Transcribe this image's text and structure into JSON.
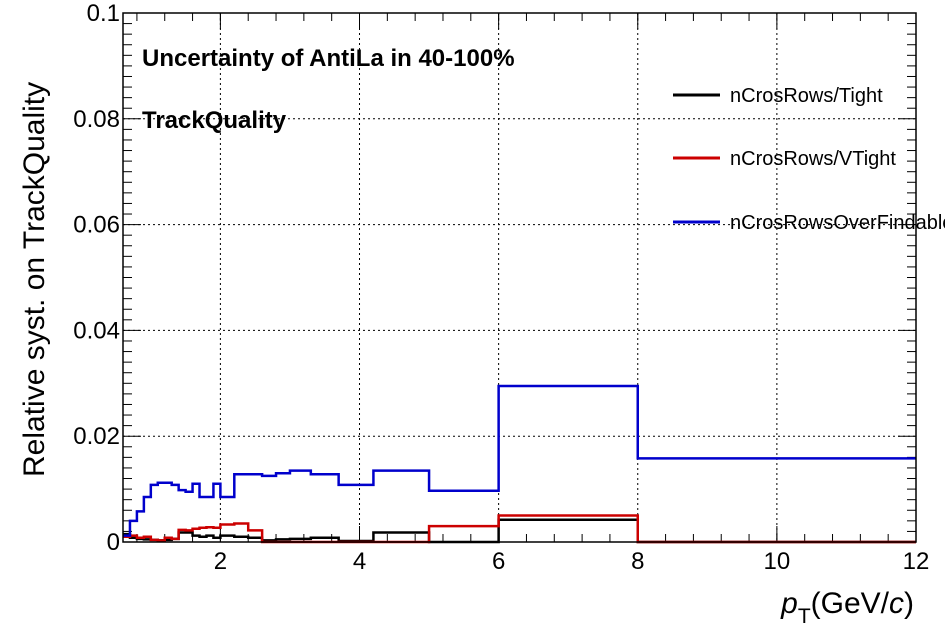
{
  "chart_data": {
    "type": "line",
    "title": "Uncertainty of AntiLa in 40-100%",
    "subtitle": "TrackQuality",
    "ylabel": "Relative syst. on TrackQuality",
    "xlabel": {
      "main": "p",
      "sub": "T",
      "unit_open": "(GeV/",
      "unit_c": "c",
      "unit_close": ")"
    },
    "xlim": [
      0.6,
      12
    ],
    "ylim": [
      0,
      0.1
    ],
    "x_ticks": [
      2,
      4,
      6,
      8,
      10,
      12
    ],
    "x_tick_labels": [
      "2",
      "4",
      "6",
      "8",
      "10",
      "12"
    ],
    "y_ticks": [
      0,
      0.02,
      0.04,
      0.06,
      0.08,
      0.1
    ],
    "y_tick_labels": [
      "0",
      "0.02",
      "0.04",
      "0.06",
      "0.08",
      "0.1"
    ],
    "grid": true,
    "legend_position": "top-right",
    "bin_edges": [
      0.6,
      0.7,
      0.8,
      0.9,
      1.0,
      1.1,
      1.2,
      1.3,
      1.4,
      1.5,
      1.6,
      1.7,
      1.8,
      1.9,
      2.0,
      2.2,
      2.4,
      2.6,
      2.8,
      3.0,
      3.3,
      3.7,
      4.2,
      5.0,
      6.0,
      8.0,
      12.0
    ],
    "series": [
      {
        "name": "nCrosRows/Tight",
        "color": "#000000",
        "values": [
          0.0015,
          0.0008,
          0.0006,
          0.0005,
          0.0004,
          0.0003,
          0.0004,
          0.0006,
          0.0018,
          0.0018,
          0.0012,
          0.001,
          0.0012,
          0.0008,
          0.0012,
          0.001,
          0.0008,
          0.0003,
          0.0005,
          0.0006,
          0.0008,
          0.0002,
          0.0018,
          0.0,
          0.0042,
          0.0,
          0.0
        ]
      },
      {
        "name": "nCrosRows/VTight",
        "color": "#cc0000",
        "values": [
          0.001,
          0.0012,
          0.0008,
          0.001,
          0.0004,
          0.0003,
          0.0008,
          0.0006,
          0.0023,
          0.0022,
          0.0025,
          0.0027,
          0.0028,
          0.0027,
          0.0033,
          0.0035,
          0.0022,
          0.0,
          0.0,
          0.0,
          0.0,
          0.0,
          0.0,
          0.003,
          0.005,
          0.0,
          0.0
        ]
      },
      {
        "name": "nCrosRowsOverFindable",
        "color": "#0000cc",
        "values": [
          0.0012,
          0.004,
          0.0058,
          0.0085,
          0.0108,
          0.0112,
          0.0112,
          0.0108,
          0.0098,
          0.0095,
          0.011,
          0.0085,
          0.0085,
          0.011,
          0.0085,
          0.0128,
          0.0128,
          0.0125,
          0.013,
          0.0135,
          0.0128,
          0.0108,
          0.0135,
          0.0097,
          0.0295,
          0.0158,
          0.0158
        ]
      }
    ]
  }
}
